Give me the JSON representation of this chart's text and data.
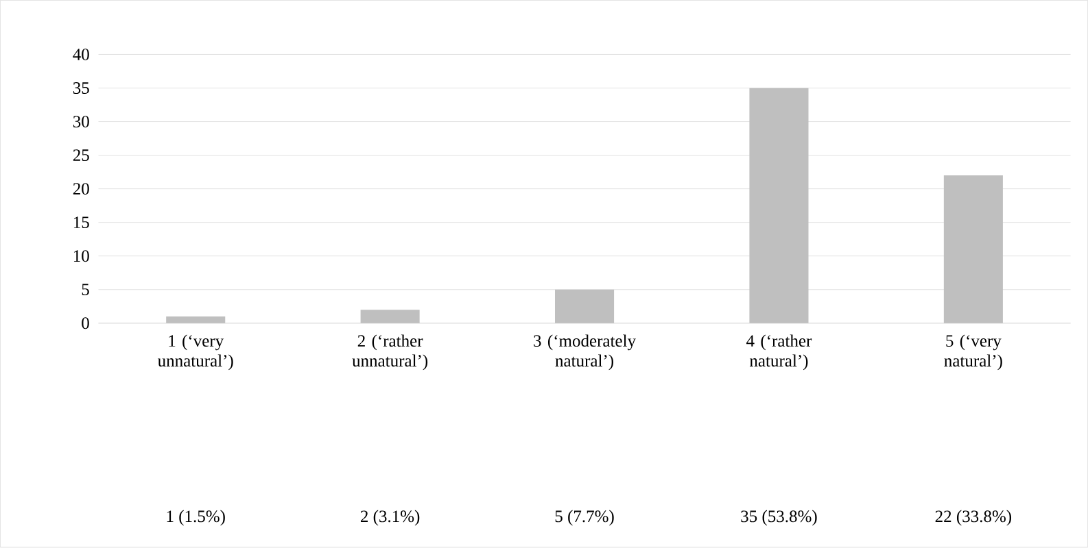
{
  "chart_data": {
    "type": "bar",
    "categories": [
      "1 (‘very unnatural’)",
      "2 (‘rather unnatural’)",
      "3 (‘moderately natural’)",
      "4 (‘rather natural’)",
      "5 (‘very natural’)"
    ],
    "values": [
      1,
      2,
      5,
      35,
      22
    ],
    "value_labels": [
      "1 (1.5%)",
      "2 (3.1%)",
      "5 (7.7%)",
      "35 (53.8%)",
      "22 (33.8%)"
    ],
    "color": "#bfbfbf",
    "ylim": [
      0,
      40
    ],
    "yticks": [
      0,
      5,
      10,
      15,
      20,
      25,
      30,
      35,
      40
    ],
    "grid": "y"
  }
}
